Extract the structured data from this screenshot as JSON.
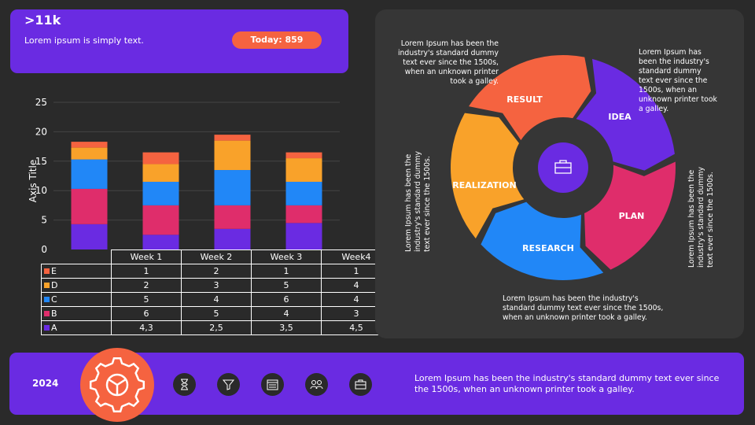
{
  "header": {
    "value": ">11k",
    "subtitle": "Lorem ipsum is simply text.",
    "today_badge": "Today: 859"
  },
  "colors": {
    "purple": "#6a2be2",
    "orange": "#f56340",
    "pink": "#df2d6b",
    "blue": "#2187f7",
    "yellow": "#f9a22a",
    "background": "#2a2a2a"
  },
  "chart_data": {
    "type": "bar",
    "stacked": true,
    "categories": [
      "Week 1",
      "Week 2",
      "Week 3",
      "Week4"
    ],
    "series": [
      {
        "name": "A",
        "values": [
          4.3,
          2.5,
          3.5,
          4.5
        ],
        "color": "#6a2be2",
        "label": [
          "4,3",
          "2,5",
          "3,5",
          "4,5"
        ]
      },
      {
        "name": "B",
        "values": [
          6,
          5,
          4,
          3
        ],
        "color": "#df2d6b",
        "label": [
          "6",
          "5",
          "4",
          "3"
        ]
      },
      {
        "name": "C",
        "values": [
          5,
          4,
          6,
          4
        ],
        "color": "#2187f7",
        "label": [
          "5",
          "4",
          "6",
          "4"
        ]
      },
      {
        "name": "D",
        "values": [
          2,
          3,
          5,
          4
        ],
        "color": "#f9a22a",
        "label": [
          "2",
          "3",
          "5",
          "4"
        ]
      },
      {
        "name": "E",
        "values": [
          1,
          2,
          1,
          1
        ],
        "color": "#f56340",
        "label": [
          "1",
          "2",
          "1",
          "1"
        ]
      }
    ],
    "ylabel": "Axis Title",
    "ylim": [
      0,
      25
    ],
    "yticks": [
      "0",
      "5",
      "10",
      "15",
      "20",
      "25"
    ],
    "grid": true,
    "legend": "data-table"
  },
  "cycle": {
    "segments": [
      {
        "label": "IDEA",
        "color": "#6a2be2"
      },
      {
        "label": "PLAN",
        "color": "#df2d6b"
      },
      {
        "label": "RESEARCH",
        "color": "#2187f7"
      },
      {
        "label": "REALIZATION",
        "color": "#f9a22a"
      },
      {
        "label": "RESULT",
        "color": "#f56340"
      }
    ],
    "center_icon": "briefcase-icon",
    "notes": {
      "top_left": "Lorem Ipsum has been the industry's standard dummy text ever since the 1500s, when an unknown printer took a galley.",
      "top_right": "Lorem Ipsum has been the industry's standard dummy text ever since the 1500s, when an unknown printer took a galley.",
      "left": "Lorem Ipsum has been the industry's standard dummy text ever since the 1500s.",
      "right": "Lorem Ipsum has been the industry's standard dummy text ever since the 1500s.",
      "bottom": "Lorem Ipsum has been the industry's standard dummy text ever since the 1500s, when an unknown printer took a galley."
    }
  },
  "footer": {
    "year": "2024",
    "icons": [
      "gear-steering-icon",
      "hourglass-icon",
      "funnel-icon",
      "calendar-icon",
      "team-icon",
      "briefcase-icon"
    ],
    "text": "Lorem Ipsum has been the industry's standard dummy text ever since the 1500s, when an unknown printer took a galley."
  }
}
